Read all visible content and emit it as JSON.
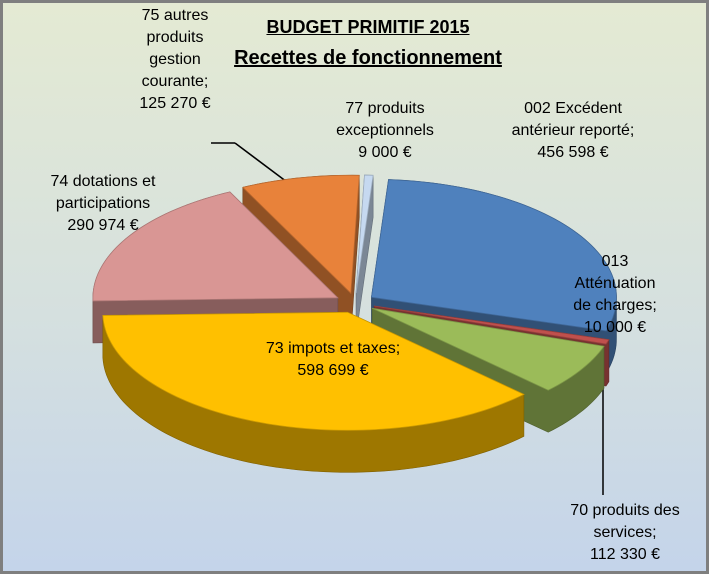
{
  "chart_data": {
    "type": "pie",
    "title": "BUDGET PRIMITIF 2015",
    "subtitle": "Recettes de fonctionnement",
    "categories": [
      "002 Excédent antérieur reporté;",
      "013 Atténuation de charges;",
      "70 produits des services;",
      "73 impots et taxes;",
      "74 dotations et participations",
      "75 autres produits gestion courante;",
      "77 produits exceptionnels"
    ],
    "values": [
      456598,
      10000,
      112330,
      598699,
      290974,
      125270,
      9000
    ],
    "value_labels": [
      "456 598 €",
      "10 000 €",
      "112 330 €",
      "598 699 €",
      "290 974 €",
      "125 270 €",
      "9 000 €"
    ],
    "colors": [
      "#4f81bd",
      "#c0504d",
      "#9bbb59",
      "#ffc000",
      "#d99694",
      "#e8823a",
      "#c6d9f0"
    ]
  }
}
